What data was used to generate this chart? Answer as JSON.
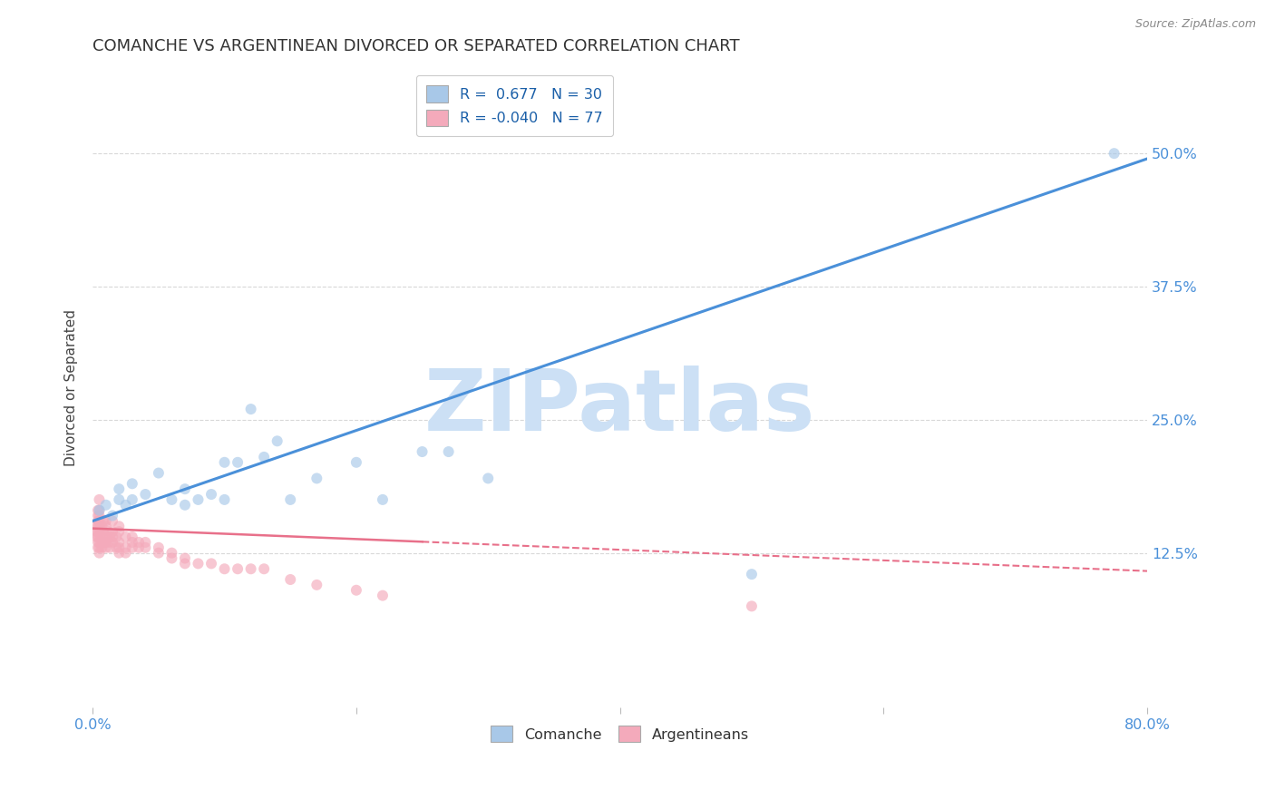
{
  "title": "COMANCHE VS ARGENTINEAN DIVORCED OR SEPARATED CORRELATION CHART",
  "source": "Source: ZipAtlas.com",
  "ylabel": "Divorced or Separated",
  "y_tick_labels": [
    "12.5%",
    "25.0%",
    "37.5%",
    "50.0%"
  ],
  "y_ticks": [
    0.125,
    0.25,
    0.375,
    0.5
  ],
  "xlim": [
    0.0,
    0.8
  ],
  "ylim": [
    -0.02,
    0.58
  ],
  "background_color": "#ffffff",
  "grid_color": "#d8d8d8",
  "watermark": "ZIPatlas",
  "comanche_x": [
    0.005,
    0.01,
    0.015,
    0.02,
    0.02,
    0.025,
    0.03,
    0.03,
    0.04,
    0.05,
    0.06,
    0.07,
    0.07,
    0.08,
    0.09,
    0.1,
    0.1,
    0.11,
    0.12,
    0.13,
    0.14,
    0.15,
    0.17,
    0.2,
    0.22,
    0.25,
    0.27,
    0.3,
    0.5,
    0.775
  ],
  "comanche_y": [
    0.165,
    0.17,
    0.16,
    0.175,
    0.185,
    0.17,
    0.175,
    0.19,
    0.18,
    0.2,
    0.175,
    0.17,
    0.185,
    0.175,
    0.18,
    0.21,
    0.175,
    0.21,
    0.26,
    0.215,
    0.23,
    0.175,
    0.195,
    0.21,
    0.175,
    0.22,
    0.22,
    0.195,
    0.105,
    0.5
  ],
  "argentinean_x": [
    0.003,
    0.003,
    0.003,
    0.004,
    0.004,
    0.004,
    0.004,
    0.004,
    0.004,
    0.004,
    0.004,
    0.005,
    0.005,
    0.005,
    0.005,
    0.005,
    0.005,
    0.005,
    0.005,
    0.005,
    0.005,
    0.007,
    0.007,
    0.007,
    0.008,
    0.008,
    0.008,
    0.01,
    0.01,
    0.01,
    0.01,
    0.01,
    0.012,
    0.012,
    0.013,
    0.013,
    0.015,
    0.015,
    0.015,
    0.015,
    0.018,
    0.018,
    0.02,
    0.02,
    0.02,
    0.02,
    0.02,
    0.025,
    0.025,
    0.025,
    0.03,
    0.03,
    0.03,
    0.035,
    0.035,
    0.04,
    0.04,
    0.05,
    0.05,
    0.06,
    0.06,
    0.07,
    0.07,
    0.08,
    0.09,
    0.1,
    0.11,
    0.12,
    0.13,
    0.15,
    0.17,
    0.2,
    0.22,
    0.5
  ],
  "argentinean_y": [
    0.14,
    0.145,
    0.15,
    0.13,
    0.135,
    0.14,
    0.145,
    0.15,
    0.155,
    0.16,
    0.165,
    0.125,
    0.13,
    0.135,
    0.14,
    0.145,
    0.15,
    0.155,
    0.16,
    0.165,
    0.175,
    0.13,
    0.14,
    0.15,
    0.135,
    0.145,
    0.155,
    0.13,
    0.135,
    0.14,
    0.15,
    0.155,
    0.135,
    0.145,
    0.13,
    0.14,
    0.135,
    0.14,
    0.145,
    0.155,
    0.13,
    0.14,
    0.125,
    0.13,
    0.135,
    0.145,
    0.15,
    0.125,
    0.13,
    0.14,
    0.13,
    0.135,
    0.14,
    0.13,
    0.135,
    0.13,
    0.135,
    0.125,
    0.13,
    0.12,
    0.125,
    0.115,
    0.12,
    0.115,
    0.115,
    0.11,
    0.11,
    0.11,
    0.11,
    0.1,
    0.095,
    0.09,
    0.085,
    0.075
  ],
  "comanche_line_color": "#4a90d9",
  "argentinean_line_color": "#e8708a",
  "comanche_dot_color": "#a8c8e8",
  "argentinean_dot_color": "#f4aabb",
  "dot_size": 75,
  "dot_alpha": 0.65,
  "title_fontsize": 13,
  "axis_label_fontsize": 11,
  "tick_fontsize": 11.5,
  "tick_color": "#4a90d9",
  "watermark_color": "#cce0f5",
  "watermark_fontsize": 68,
  "comanche_line_x0": 0.0,
  "comanche_line_y0": 0.155,
  "comanche_line_x1": 0.8,
  "comanche_line_y1": 0.495,
  "argentinean_line_x0": 0.0,
  "argentinean_line_y0": 0.148,
  "argentinean_line_x1": 0.8,
  "argentinean_line_y1": 0.108
}
